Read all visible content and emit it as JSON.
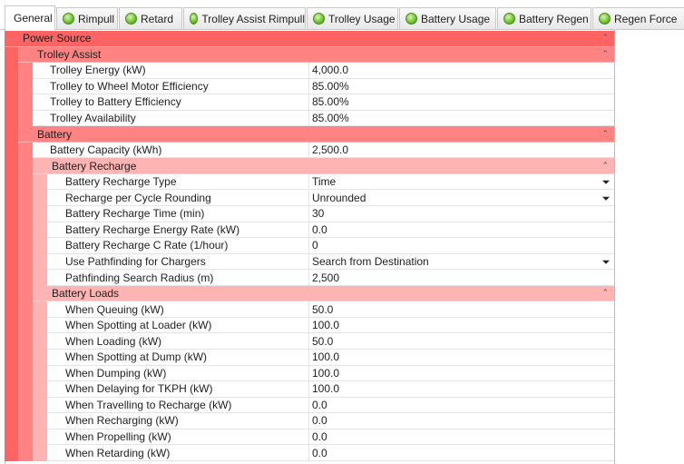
{
  "tabs": [
    {
      "label": "General",
      "active": true,
      "icon": false
    },
    {
      "label": "Rimpull",
      "active": false,
      "icon": true
    },
    {
      "label": "Retard",
      "active": false,
      "icon": true
    },
    {
      "label": "Trolley Assist Rimpull",
      "active": false,
      "icon": true
    },
    {
      "label": "Trolley Usage",
      "active": false,
      "icon": true
    },
    {
      "label": "Battery Usage",
      "active": false,
      "icon": true
    },
    {
      "label": "Battery Regen",
      "active": false,
      "icon": true
    },
    {
      "label": "Regen Force",
      "active": false,
      "icon": true
    }
  ],
  "grid": {
    "sections": [
      {
        "title": "Power Source",
        "items": [
          {
            "title": "Trolley Assist",
            "items": [
              {
                "label": "Trolley Energy (kW)",
                "value": "4,000.0"
              },
              {
                "label": "Trolley to Wheel Motor Efficiency",
                "value": "85.00%"
              },
              {
                "label": "Trolley to Battery Efficiency",
                "value": "85.00%"
              },
              {
                "label": "Trolley Availability",
                "value": "85.00%"
              }
            ]
          },
          {
            "title": "Battery",
            "items": [
              {
                "label": "Battery Capacity (kWh)",
                "value": "2,500.0"
              },
              {
                "title": "Battery Recharge",
                "items": [
                  {
                    "label": "Battery Recharge Type",
                    "value": "Time",
                    "dropdown": true
                  },
                  {
                    "label": "Recharge per Cycle Rounding",
                    "value": "Unrounded",
                    "dropdown": true
                  },
                  {
                    "label": "Battery Recharge Time (min)",
                    "value": "30"
                  },
                  {
                    "label": "Battery Recharge Energy Rate (kW)",
                    "value": "0.0"
                  },
                  {
                    "label": "Battery Recharge C Rate (1/hour)",
                    "value": "0"
                  },
                  {
                    "label": "Use Pathfinding for Chargers",
                    "value": "Search from Destination",
                    "dropdown": true
                  },
                  {
                    "label": "Pathfinding Search Radius (m)",
                    "value": "2,500"
                  }
                ]
              },
              {
                "title": "Battery Loads",
                "items": [
                  {
                    "label": "When Queuing (kW)",
                    "value": "50.0"
                  },
                  {
                    "label": "When Spotting at Loader (kW)",
                    "value": "100.0"
                  },
                  {
                    "label": "When Loading (kW)",
                    "value": "50.0"
                  },
                  {
                    "label": "When Spotting at Dump (kW)",
                    "value": "100.0"
                  },
                  {
                    "label": "When Dumping (kW)",
                    "value": "100.0"
                  },
                  {
                    "label": "When Delaying for TKPH (kW)",
                    "value": "100.0"
                  },
                  {
                    "label": "When Travelling to Recharge (kW)",
                    "value": "0.0"
                  },
                  {
                    "label": "When Recharging (kW)",
                    "value": "0.0"
                  },
                  {
                    "label": "When Propelling (kW)",
                    "value": "0.0"
                  },
                  {
                    "label": "When Retarding (kW)",
                    "value": "0.0"
                  }
                ]
              }
            ]
          }
        ]
      }
    ]
  }
}
